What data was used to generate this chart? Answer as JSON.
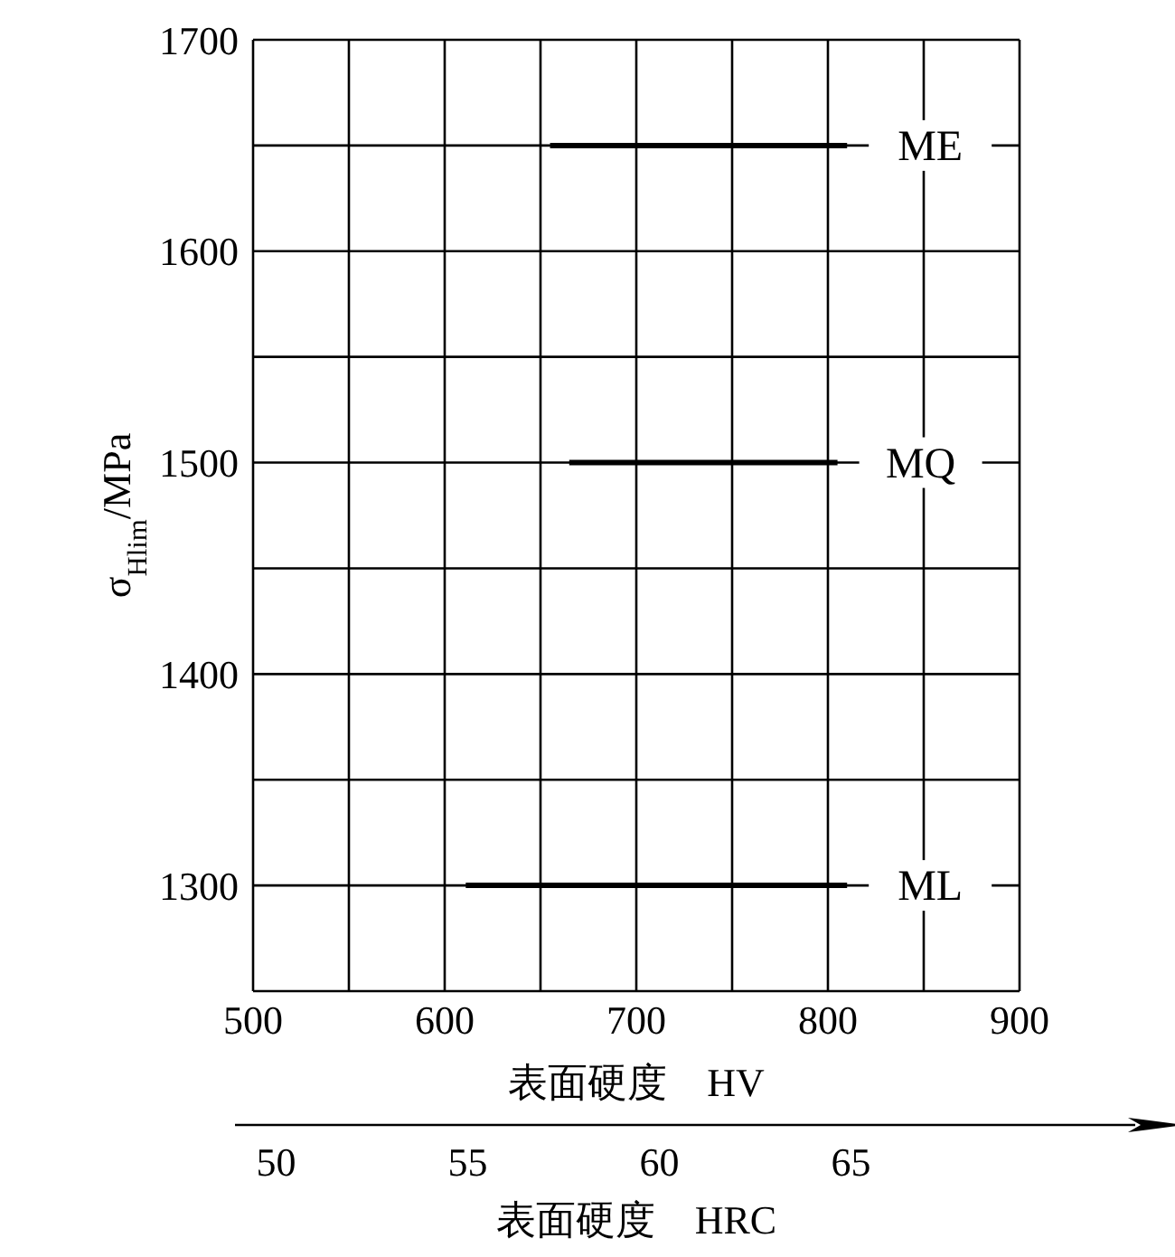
{
  "chart_data": {
    "type": "line",
    "xlabel": "表面硬度　HV",
    "ylabel": "σ$_{Hlim}$/MPa",
    "x2label": "表面硬度　HRC",
    "xlim": [
      500,
      900
    ],
    "xticks": [
      500,
      {
        "value": 550,
        "label": null
      },
      600,
      {
        "value": 650,
        "label": null
      },
      700,
      {
        "value": 750,
        "label": null
      },
      800,
      {
        "value": 850,
        "label": null
      },
      900
    ],
    "x2lim": [
      49.4,
      69.4
    ],
    "x2ticks": [
      50,
      55,
      60,
      65
    ],
    "ylim": [
      1250,
      1700
    ],
    "yticks": [
      {
        "value": 1250,
        "label": null
      },
      1300,
      {
        "value": 1350,
        "label": null
      },
      1400,
      {
        "value": 1450,
        "label": null
      },
      1500,
      {
        "value": 1550,
        "label": null
      },
      1600,
      {
        "value": 1650,
        "label": null
      },
      1700
    ],
    "grid": true,
    "legend": false,
    "marker": "none",
    "line_style": "solid",
    "series": [
      {
        "name": "ME",
        "color": "#000000",
        "x": [
          655,
          810
        ],
        "values": [
          1650,
          1650
        ]
      },
      {
        "name": "MQ",
        "color": "#000000",
        "x": [
          665,
          805
        ],
        "values": [
          1500,
          1500
        ]
      },
      {
        "name": "ML",
        "color": "#000000",
        "x": [
          611,
          810
        ],
        "values": [
          1300,
          1300
        ]
      }
    ]
  }
}
